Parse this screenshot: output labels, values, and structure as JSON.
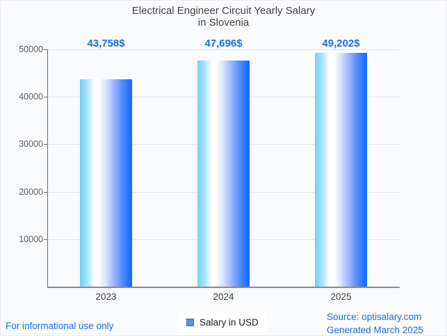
{
  "title": {
    "line1": "Electrical Engineer Circuit Yearly Salary",
    "line2": "in Slovenia"
  },
  "chart_data": {
    "type": "bar",
    "categories": [
      "2023",
      "2024",
      "2025"
    ],
    "series": [
      {
        "name": "Salary in USD",
        "values": [
          43758,
          47696,
          49202
        ]
      }
    ],
    "value_labels": [
      "43,758$",
      "47,696$",
      "49,202$"
    ],
    "title": "Electrical Engineer Circuit Yearly Salary in Slovenia",
    "xlabel": "",
    "ylabel": "",
    "ylim": [
      0,
      50000
    ],
    "y_ticks": [
      10000,
      20000,
      30000,
      40000,
      50000
    ],
    "grid": true,
    "legend_position": "bottom-center",
    "bar_gradient": [
      "#73cffb",
      "#ffffff",
      "#0e68fc"
    ]
  },
  "legend": {
    "label": "Salary in USD",
    "marker_color": "#5596e5",
    "marker_border": "#3a6cbd"
  },
  "footer": {
    "disclaimer": "For informational use only",
    "source_line1": "Source: optisalary.com",
    "source_line2": "Generated March 2025"
  },
  "colors": {
    "accent_blue": "#1a6ef0",
    "source_blue": "#2368df",
    "title_gray": "#424242",
    "axis_gray": "#6b6b6b",
    "grid_gray": "#e4e5ea",
    "background": "#fafbfd"
  }
}
